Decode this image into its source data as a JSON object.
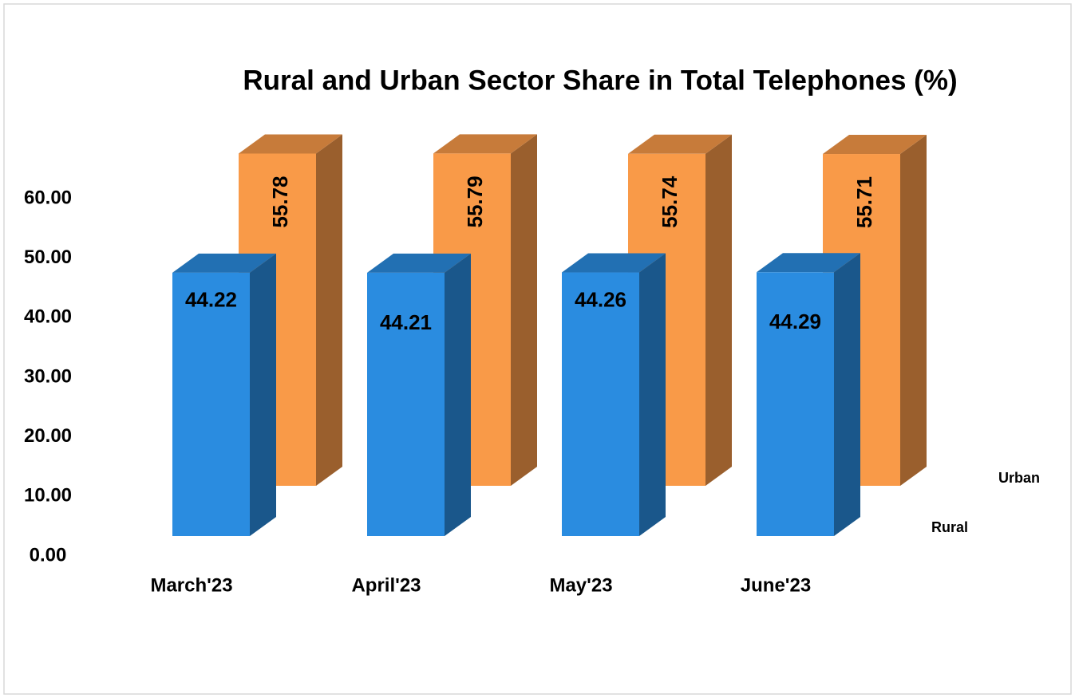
{
  "chart_data": {
    "type": "bar3d",
    "title": "Rural and Urban Sector Share in Total Telephones (%)",
    "categories": [
      "March'23",
      "April'23",
      "May'23",
      "June'23"
    ],
    "series": [
      {
        "name": "Rural",
        "color": "#2a8ce0",
        "values": [
          44.22,
          44.21,
          44.26,
          44.29
        ]
      },
      {
        "name": "Urban",
        "color": "#f99a48",
        "values": [
          55.78,
          55.79,
          55.74,
          55.71
        ]
      }
    ],
    "ylim": [
      0,
      60
    ],
    "yticks": [
      {
        "value": 0,
        "label": "0.00"
      },
      {
        "value": 10,
        "label": "10.00"
      },
      {
        "value": 20,
        "label": "20.00"
      },
      {
        "value": 30,
        "label": "30.00"
      },
      {
        "value": 40,
        "label": "40.00"
      },
      {
        "value": 50,
        "label": "50.00"
      },
      {
        "value": 60,
        "label": "60.00"
      }
    ]
  }
}
